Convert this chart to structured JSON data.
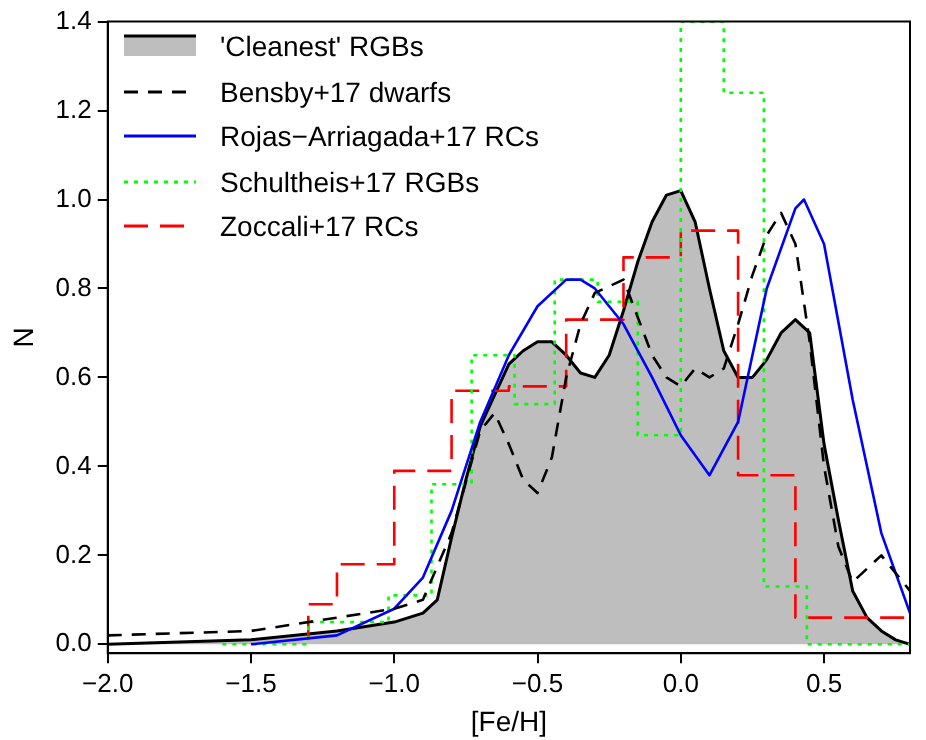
{
  "chart_data": {
    "type": "line",
    "xlabel": "[Fe/H]",
    "ylabel": "N",
    "xlim": [
      -2.0,
      0.8
    ],
    "ylim": [
      -0.02,
      1.4
    ],
    "xticks": [
      {
        "value": -2.0,
        "label": "−2.0"
      },
      {
        "value": -1.5,
        "label": "−1.5"
      },
      {
        "value": -1.0,
        "label": "−1.0"
      },
      {
        "value": -0.5,
        "label": "−0.5"
      },
      {
        "value": 0.0,
        "label": "0.0"
      },
      {
        "value": 0.5,
        "label": "0.5"
      }
    ],
    "yticks": [
      {
        "value": 0,
        "label": "0.0"
      },
      {
        "value": 0.2,
        "label": "0.2"
      },
      {
        "value": 0.4,
        "label": "0.4"
      },
      {
        "value": 0.6,
        "label": "0.6"
      },
      {
        "value": 0.8,
        "label": "0.8"
      },
      {
        "value": 1.0,
        "label": "1.0"
      },
      {
        "value": 1.2,
        "label": "1.2"
      },
      {
        "value": 1.4,
        "label": "1.4"
      }
    ],
    "grid": false,
    "legend": "top left",
    "series": [
      {
        "name": "'Cleanest' RGBs",
        "type": "area",
        "color": "#bebebe",
        "x": [
          -2.0,
          -1.5,
          -1.2,
          -1.0,
          -0.9,
          -0.85,
          -0.8,
          -0.75,
          -0.7,
          -0.65,
          -0.6,
          -0.55,
          -0.5,
          -0.45,
          -0.4,
          -0.35,
          -0.3,
          -0.25,
          -0.2,
          -0.15,
          -0.1,
          -0.05,
          0.0,
          0.05,
          0.1,
          0.15,
          0.2,
          0.25,
          0.3,
          0.35,
          0.4,
          0.45,
          0.5,
          0.55,
          0.6,
          0.65,
          0.7,
          0.75,
          0.8
        ],
        "values": [
          0.0,
          0.01,
          0.03,
          0.05,
          0.07,
          0.1,
          0.24,
          0.37,
          0.49,
          0.56,
          0.63,
          0.66,
          0.68,
          0.68,
          0.65,
          0.61,
          0.6,
          0.65,
          0.75,
          0.86,
          0.95,
          1.01,
          1.02,
          0.95,
          0.8,
          0.66,
          0.6,
          0.6,
          0.64,
          0.7,
          0.73,
          0.7,
          0.45,
          0.28,
          0.12,
          0.06,
          0.03,
          0.01,
          0.0
        ]
      },
      {
        "name": "Bensby+17 dwarfs",
        "line_style": "dashed",
        "color": "#000000",
        "x": [
          -2.0,
          -1.5,
          -1.2,
          -1.0,
          -0.9,
          -0.8,
          -0.7,
          -0.65,
          -0.6,
          -0.55,
          -0.5,
          -0.45,
          -0.4,
          -0.35,
          -0.3,
          -0.2,
          -0.1,
          -0.05,
          0.0,
          0.05,
          0.1,
          0.15,
          0.2,
          0.25,
          0.3,
          0.35,
          0.4,
          0.45,
          0.5,
          0.55,
          0.6,
          0.7,
          0.75,
          0.8
        ],
        "values": [
          0.02,
          0.03,
          0.06,
          0.08,
          0.1,
          0.25,
          0.48,
          0.52,
          0.45,
          0.37,
          0.34,
          0.42,
          0.6,
          0.72,
          0.79,
          0.82,
          0.65,
          0.6,
          0.58,
          0.62,
          0.6,
          0.62,
          0.72,
          0.83,
          0.92,
          0.97,
          0.9,
          0.68,
          0.4,
          0.22,
          0.14,
          0.2,
          0.16,
          0.12
        ]
      },
      {
        "name": "Rojas−Arriagada+17 RCs",
        "line_style": "solid",
        "color": "#0000ff",
        "x": [
          -1.5,
          -1.2,
          -1.0,
          -0.9,
          -0.8,
          -0.7,
          -0.6,
          -0.5,
          -0.4,
          -0.35,
          -0.3,
          -0.2,
          -0.1,
          0.0,
          0.1,
          0.2,
          0.3,
          0.4,
          0.43,
          0.5,
          0.6,
          0.7,
          0.8
        ],
        "values": [
          0.0,
          0.02,
          0.08,
          0.15,
          0.3,
          0.5,
          0.65,
          0.76,
          0.82,
          0.82,
          0.8,
          0.72,
          0.6,
          0.47,
          0.38,
          0.5,
          0.8,
          0.98,
          1.0,
          0.9,
          0.55,
          0.25,
          0.07
        ]
      },
      {
        "name": "Schultheis+17 RGBs",
        "type": "step",
        "line_style": "dotted",
        "color": "#00ff00",
        "x": [
          -1.6,
          -1.45,
          -1.3,
          -1.16,
          -1.02,
          -0.87,
          -0.73,
          -0.58,
          -0.44,
          -0.29,
          -0.15,
          0.0,
          0.15,
          0.29,
          0.44,
          0.58,
          0.8
        ],
        "values": [
          0,
          0,
          0,
          0.05,
          0.05,
          0.11,
          0.36,
          0.65,
          0.54,
          0.82,
          0.77,
          0.47,
          1.4,
          1.24,
          0.13,
          0,
          0
        ]
      },
      {
        "name": "Zoccali+17 RCs",
        "type": "step",
        "line_style": "dashed",
        "color": "#ff0000",
        "x": [
          -1.3,
          -1.2,
          -1.0,
          -0.8,
          -0.6,
          -0.4,
          -0.2,
          0.0,
          0.2,
          0.4,
          0.6,
          0.8
        ],
        "values": [
          0.01,
          0.09,
          0.18,
          0.39,
          0.57,
          0.58,
          0.73,
          0.87,
          0.93,
          0.38,
          0.06,
          0.06
        ]
      }
    ]
  }
}
